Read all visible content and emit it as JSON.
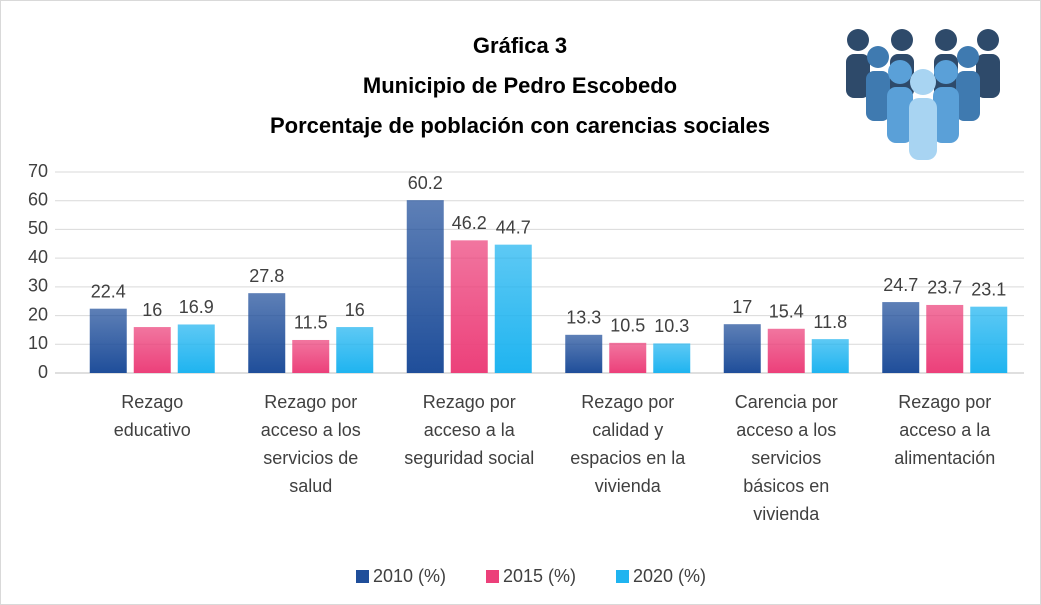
{
  "chart_data": {
    "type": "bar",
    "title": [
      "Gráfica 3",
      "Municipio de Pedro Escobedo",
      "Porcentaje de población con carencias sociales"
    ],
    "categories": [
      "Rezago\neducativo",
      "Rezago por\nacceso a los\nservicios de\nsalud",
      "Rezago por\nacceso a la\nseguridad social",
      "Rezago por\ncalidad y\nespacios en la\nvivienda",
      "Carencia por\nacceso a los\nservicios\nbásicos en\nvivienda",
      "Rezago por\nacceso a la\nalimentación"
    ],
    "series": [
      {
        "name": "2010 (%)",
        "color": "#1f4e9a",
        "values": [
          22.4,
          27.8,
          60.2,
          13.3,
          17,
          24.7
        ]
      },
      {
        "name": "2015 (%)",
        "color": "#ec407a",
        "values": [
          16,
          11.5,
          46.2,
          10.5,
          15.4,
          23.7
        ]
      },
      {
        "name": "2020 (%)",
        "color": "#1fb4f0",
        "values": [
          16.9,
          16,
          44.7,
          10.3,
          11.8,
          23.1
        ]
      }
    ],
    "ylim": [
      0,
      70
    ],
    "yticks": [
      0,
      10,
      20,
      30,
      40,
      50,
      60,
      70
    ],
    "grid": true,
    "legend": "bottom"
  }
}
